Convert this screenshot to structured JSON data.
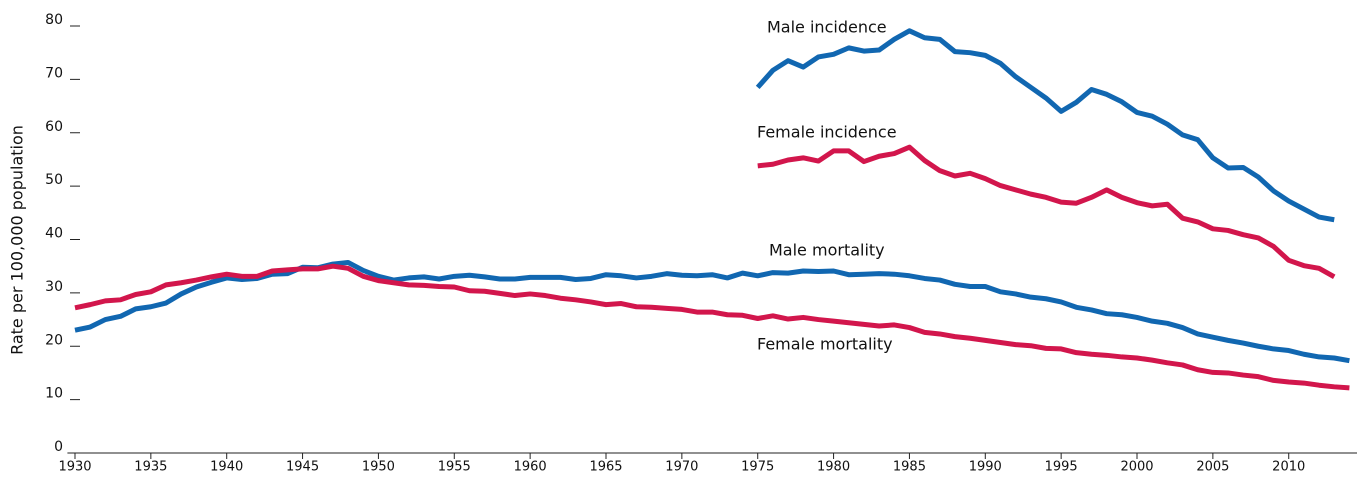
{
  "chart_data": {
    "type": "line",
    "y_label": "Rate per 100,000 population",
    "xlim": [
      1929.5,
      2014.5
    ],
    "ylim": [
      0,
      80
    ],
    "xticks": [
      1930,
      1935,
      1940,
      1945,
      1950,
      1955,
      1960,
      1965,
      1970,
      1975,
      1980,
      1985,
      1990,
      1995,
      2000,
      2005,
      2010
    ],
    "yticks": [
      0,
      10,
      20,
      30,
      40,
      50,
      60,
      70,
      80
    ],
    "series": [
      {
        "name": "Male incidence",
        "color": "#1167b1",
        "x": [
          1975,
          1976,
          1977,
          1978,
          1979,
          1980,
          1981,
          1982,
          1983,
          1984,
          1985,
          1986,
          1987,
          1988,
          1989,
          1990,
          1991,
          1992,
          1993,
          1994,
          1995,
          1996,
          1997,
          1998,
          1999,
          2000,
          2001,
          2002,
          2003,
          2004,
          2005,
          2006,
          2007,
          2008,
          2009,
          2010,
          2011,
          2012,
          2013
        ],
        "values": [
          68.5,
          71.7,
          73.5,
          72.3,
          74.2,
          74.7,
          75.9,
          75.3,
          75.5,
          77.5,
          79.1,
          77.8,
          77.5,
          75.2,
          75.0,
          74.5,
          73.0,
          70.5,
          68.5,
          66.5,
          64.0,
          65.7,
          68.1,
          67.2,
          65.8,
          63.8,
          63.1,
          61.6,
          59.6,
          58.7,
          55.3,
          53.4,
          53.5,
          51.7,
          49.1,
          47.2,
          45.7,
          44.2,
          43.7
        ]
      },
      {
        "name": "Female incidence",
        "color": "#d2164c",
        "x": [
          1975,
          1976,
          1977,
          1978,
          1979,
          1980,
          1981,
          1982,
          1983,
          1984,
          1985,
          1986,
          1987,
          1988,
          1989,
          1990,
          1991,
          1992,
          1993,
          1994,
          1995,
          1996,
          1997,
          1998,
          1999,
          2000,
          2001,
          2002,
          2003,
          2004,
          2005,
          2006,
          2007,
          2008,
          2009,
          2010,
          2011,
          2012,
          2013
        ],
        "values": [
          53.8,
          54.1,
          54.9,
          55.3,
          54.7,
          56.6,
          56.6,
          54.6,
          55.6,
          56.1,
          57.3,
          54.8,
          52.9,
          51.9,
          52.4,
          51.4,
          50.1,
          49.3,
          48.5,
          47.9,
          47.0,
          46.8,
          47.9,
          49.3,
          47.9,
          46.9,
          46.3,
          46.6,
          44.0,
          43.3,
          42.0,
          41.7,
          40.9,
          40.3,
          38.7,
          36.1,
          35.1,
          34.6,
          33.0
        ]
      },
      {
        "name": "Male mortality",
        "color": "#1167b1",
        "x": [
          1930,
          1931,
          1932,
          1933,
          1934,
          1935,
          1936,
          1937,
          1938,
          1939,
          1940,
          1941,
          1942,
          1943,
          1944,
          1945,
          1946,
          1947,
          1948,
          1949,
          1950,
          1951,
          1952,
          1953,
          1954,
          1955,
          1956,
          1957,
          1958,
          1959,
          1960,
          1961,
          1962,
          1963,
          1964,
          1965,
          1966,
          1967,
          1968,
          1969,
          1970,
          1971,
          1972,
          1973,
          1974,
          1975,
          1976,
          1977,
          1978,
          1979,
          1980,
          1981,
          1982,
          1983,
          1984,
          1985,
          1986,
          1987,
          1988,
          1989,
          1990,
          1991,
          1992,
          1993,
          1994,
          1995,
          1996,
          1997,
          1998,
          1999,
          2000,
          2001,
          2002,
          2003,
          2004,
          2005,
          2006,
          2007,
          2008,
          2009,
          2010,
          2011,
          2012,
          2013,
          2014
        ],
        "values": [
          23.0,
          23.6,
          25.0,
          25.6,
          27.0,
          27.4,
          28.1,
          29.8,
          31.1,
          32.0,
          32.8,
          32.5,
          32.7,
          33.5,
          33.6,
          34.8,
          34.7,
          35.4,
          35.7,
          34.2,
          33.1,
          32.4,
          32.8,
          33.0,
          32.6,
          33.1,
          33.3,
          33.0,
          32.6,
          32.6,
          32.9,
          32.9,
          32.9,
          32.5,
          32.7,
          33.4,
          33.2,
          32.8,
          33.1,
          33.6,
          33.3,
          33.2,
          33.4,
          32.8,
          33.7,
          33.2,
          33.8,
          33.7,
          34.1,
          34.0,
          34.1,
          33.4,
          33.5,
          33.6,
          33.5,
          33.2,
          32.7,
          32.4,
          31.6,
          31.2,
          31.2,
          30.2,
          29.8,
          29.2,
          28.9,
          28.3,
          27.3,
          26.8,
          26.1,
          25.9,
          25.4,
          24.7,
          24.3,
          23.5,
          22.3,
          21.7,
          21.1,
          20.6,
          20.0,
          19.5,
          19.2,
          18.5,
          18.0,
          17.8,
          17.3
        ]
      },
      {
        "name": "Female mortality",
        "color": "#d2164c",
        "x": [
          1930,
          1931,
          1932,
          1933,
          1934,
          1935,
          1936,
          1937,
          1938,
          1939,
          1940,
          1941,
          1942,
          1943,
          1944,
          1945,
          1946,
          1947,
          1948,
          1949,
          1950,
          1951,
          1952,
          1953,
          1954,
          1955,
          1956,
          1957,
          1958,
          1959,
          1960,
          1961,
          1962,
          1963,
          1964,
          1965,
          1966,
          1967,
          1968,
          1969,
          1970,
          1971,
          1972,
          1973,
          1974,
          1975,
          1976,
          1977,
          1978,
          1979,
          1980,
          1981,
          1982,
          1983,
          1984,
          1985,
          1986,
          1987,
          1988,
          1989,
          1990,
          1991,
          1992,
          1993,
          1994,
          1995,
          1996,
          1997,
          1998,
          1999,
          2000,
          2001,
          2002,
          2003,
          2004,
          2005,
          2006,
          2007,
          2008,
          2009,
          2010,
          2011,
          2012,
          2013,
          2014
        ],
        "values": [
          27.2,
          27.8,
          28.5,
          28.7,
          29.7,
          30.2,
          31.5,
          31.9,
          32.4,
          33.0,
          33.5,
          33.1,
          33.1,
          34.1,
          34.3,
          34.5,
          34.5,
          35.0,
          34.6,
          33.1,
          32.3,
          31.9,
          31.5,
          31.4,
          31.2,
          31.1,
          30.4,
          30.3,
          29.9,
          29.5,
          29.8,
          29.5,
          29.0,
          28.7,
          28.3,
          27.8,
          28.0,
          27.4,
          27.3,
          27.1,
          26.9,
          26.4,
          26.4,
          25.9,
          25.8,
          25.2,
          25.7,
          25.1,
          25.4,
          25.0,
          24.7,
          24.4,
          24.1,
          23.8,
          24.0,
          23.5,
          22.6,
          22.3,
          21.8,
          21.5,
          21.1,
          20.7,
          20.3,
          20.1,
          19.6,
          19.5,
          18.8,
          18.5,
          18.3,
          18.0,
          17.8,
          17.4,
          16.9,
          16.5,
          15.6,
          15.1,
          15.0,
          14.6,
          14.3,
          13.6,
          13.3,
          13.1,
          12.7,
          12.4,
          12.2
        ]
      }
    ]
  }
}
